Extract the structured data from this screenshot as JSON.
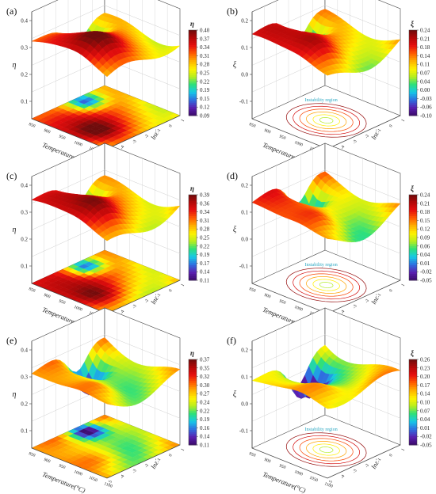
{
  "chart_data": [
    {
      "type": "surface3d",
      "panel": "(a)",
      "z_axis_label": "η",
      "z_ticks": [
        "0.1",
        "0.2",
        "0.3",
        "0.4"
      ],
      "x_axis_label": "Temperature(°C)",
      "x_ticks": [
        "850",
        "900",
        "950",
        "1000",
        "1050",
        "1100"
      ],
      "y_axis_label": "lnε̇",
      "y_ticks": [
        "-5",
        "-4",
        "-3",
        "-2",
        "-1",
        "0",
        "1"
      ],
      "colorbar_title": "η",
      "colorbar_ticks": [
        "0.40",
        "0.37",
        "0.34",
        "0.31",
        "0.28",
        "0.25",
        "0.22",
        "0.19",
        "0.15",
        "0.12",
        "0.09"
      ],
      "colorbar_range": [
        0.09,
        0.4
      ],
      "contour_label": "",
      "surface_range": [
        0.09,
        0.4
      ],
      "grid": true
    },
    {
      "type": "surface3d",
      "panel": "(b)",
      "z_axis_label": "ξ",
      "z_ticks": [
        "-0.1",
        "0.0",
        "0.1",
        "0.2"
      ],
      "x_axis_label": "Temperature(°C)",
      "x_ticks": [
        "850",
        "900",
        "950",
        "1000",
        "1050",
        "1100"
      ],
      "y_axis_label": "lnε̇",
      "y_ticks": [
        "-5",
        "-4",
        "-3",
        "-2",
        "-1",
        "0",
        "1"
      ],
      "colorbar_title": "ξ",
      "colorbar_ticks": [
        "0.24",
        "0.21",
        "0.18",
        "0.14",
        "0.11",
        "0.07",
        "0.04",
        "0.00",
        "-0.03",
        "-0.06",
        "-0.10"
      ],
      "colorbar_range": [
        -0.1,
        0.24
      ],
      "contour_label": "Instability region",
      "surface_range": [
        -0.1,
        0.24
      ],
      "grid": true
    },
    {
      "type": "surface3d",
      "panel": "(c)",
      "z_axis_label": "η",
      "z_ticks": [
        "0.1",
        "0.2",
        "0.3",
        "0.4"
      ],
      "x_axis_label": "Temperature(°C)",
      "x_ticks": [
        "850",
        "900",
        "950",
        "1000",
        "1050",
        "1100"
      ],
      "y_axis_label": "lnε̇",
      "y_ticks": [
        "-5",
        "-4",
        "-3",
        "-2",
        "-1",
        "0",
        "1"
      ],
      "colorbar_title": "η",
      "colorbar_ticks": [
        "0.39",
        "0.36",
        "0.34",
        "0.31",
        "0.28",
        "0.25",
        "0.22",
        "0.19",
        "0.17",
        "0.14",
        "0.11"
      ],
      "colorbar_range": [
        0.11,
        0.39
      ],
      "contour_label": "",
      "surface_range": [
        0.11,
        0.39
      ],
      "grid": true
    },
    {
      "type": "surface3d",
      "panel": "(d)",
      "z_axis_label": "ξ",
      "z_ticks": [
        "-0.1",
        "0.0",
        "0.1",
        "0.2"
      ],
      "x_axis_label": "Temperature(°C)",
      "x_ticks": [
        "850",
        "900",
        "950",
        "1000",
        "1050",
        "1100"
      ],
      "y_axis_label": "lnε̇",
      "y_ticks": [
        "-5",
        "-4",
        "-3",
        "-2",
        "-1",
        "0",
        "1"
      ],
      "colorbar_title": "ξ",
      "colorbar_ticks": [
        "0.24",
        "0.21",
        "0.18",
        "0.15",
        "0.12",
        "0.09",
        "0.06",
        "0.04",
        "0.01",
        "-0.02",
        "-0.05"
      ],
      "colorbar_range": [
        -0.05,
        0.24
      ],
      "contour_label": "Instability region",
      "surface_range": [
        -0.05,
        0.24
      ],
      "grid": true
    },
    {
      "type": "surface3d",
      "panel": "(e)",
      "z_axis_label": "η",
      "z_ticks": [
        "0.1",
        "0.2",
        "0.3",
        "0.4"
      ],
      "x_axis_label": "Temperature(°C)",
      "x_ticks": [
        "850",
        "900",
        "950",
        "1000",
        "1050",
        "1100"
      ],
      "y_axis_label": "lnε̇",
      "y_ticks": [
        "-5",
        "-4",
        "-3",
        "-2",
        "-1",
        "0",
        "1"
      ],
      "colorbar_title": "η",
      "colorbar_ticks": [
        "0.37",
        "0.35",
        "0.32",
        "0.30",
        "0.27",
        "0.24",
        "0.22",
        "0.19",
        "0.16",
        "0.14",
        "0.11"
      ],
      "colorbar_range": [
        0.11,
        0.37
      ],
      "contour_label": "",
      "surface_range": [
        0.11,
        0.37
      ],
      "grid": true
    },
    {
      "type": "surface3d",
      "panel": "(f)",
      "z_axis_label": "ξ",
      "z_ticks": [
        "-0.1",
        "0.0",
        "0.1",
        "0.2"
      ],
      "x_axis_label": "Temperature(°C)",
      "x_ticks": [
        "850",
        "900",
        "950",
        "1000",
        "1050",
        "1100"
      ],
      "y_axis_label": "lnε̇",
      "y_ticks": [
        "-5",
        "-4",
        "-3",
        "-2",
        "-1",
        "0",
        "1"
      ],
      "colorbar_title": "ξ",
      "colorbar_ticks": [
        "0.26",
        "0.23",
        "0.20",
        "0.17",
        "0.14",
        "0.10",
        "0.07",
        "0.04",
        "0.01",
        "-0.02",
        "-0.05"
      ],
      "colorbar_range": [
        -0.05,
        0.26
      ],
      "contour_label": "Instability region",
      "surface_range": [
        -0.05,
        0.26
      ],
      "grid": true
    }
  ],
  "colors": {
    "colormap": [
      "#3b0a6b",
      "#5a1fb0",
      "#2f6fe0",
      "#16c8e8",
      "#2ee07a",
      "#b8ee1e",
      "#fff200",
      "#ffb000",
      "#ff5a00",
      "#e60e0e",
      "#b30808",
      "#6e0c0c"
    ],
    "axis": "#444444",
    "grid": "#cfcfcf",
    "annotation": "#2aa7c2"
  }
}
